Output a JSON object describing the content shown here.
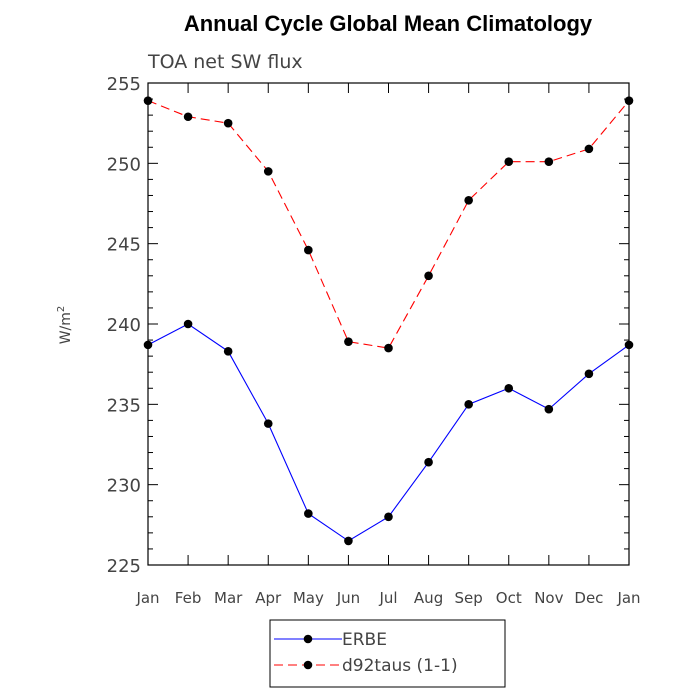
{
  "chart_data": {
    "type": "line",
    "title": "Annual Cycle Global Mean Climatology",
    "subtitle": "TOA net SW flux",
    "xlabel": "",
    "ylabel": "W/m",
    "ylabel_superscript": "2",
    "categories": [
      "Jan",
      "Feb",
      "Mar",
      "Apr",
      "May",
      "Jun",
      "Jul",
      "Aug",
      "Sep",
      "Oct",
      "Nov",
      "Dec",
      "Jan"
    ],
    "ylim": [
      225,
      255
    ],
    "yticks": [
      225,
      230,
      235,
      240,
      245,
      250,
      255
    ],
    "legend_placement": "bottom-center",
    "series": [
      {
        "name": "ERBE",
        "color": "#0000ff",
        "linestyle": "solid",
        "values": [
          238.7,
          240.0,
          238.3,
          233.8,
          228.2,
          226.5,
          228.0,
          231.4,
          235.0,
          236.0,
          234.7,
          236.9,
          238.7
        ]
      },
      {
        "name": "d92taus (1-1)",
        "color": "#ff0000",
        "linestyle": "dashed",
        "values": [
          253.9,
          252.9,
          252.5,
          249.5,
          244.6,
          238.9,
          238.5,
          243.0,
          247.7,
          250.1,
          250.1,
          250.9,
          253.9
        ]
      }
    ]
  }
}
